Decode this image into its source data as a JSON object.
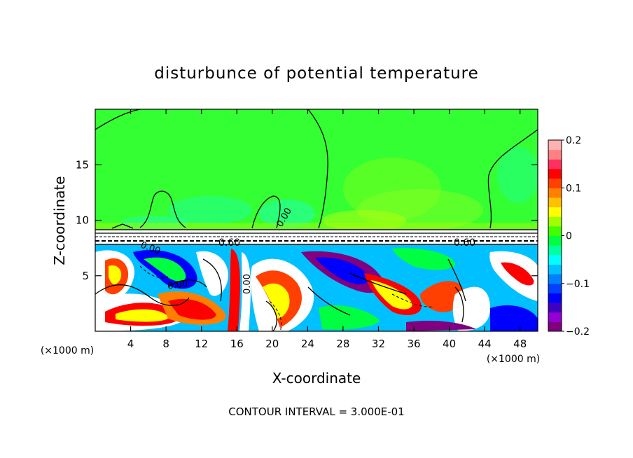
{
  "chart_data": {
    "type": "heatmap",
    "title": "disturbunce of potential temperature",
    "xlabel": "X-coordinate",
    "ylabel": "Z-coordinate",
    "x_unit_left": "(×1000 m)",
    "x_unit_right": "(×1000 m)",
    "xlim": [
      0,
      50
    ],
    "ylim": [
      0,
      20
    ],
    "xticks": [
      4,
      8,
      12,
      16,
      20,
      24,
      28,
      32,
      36,
      40,
      44,
      48
    ],
    "yticks": [
      5,
      10,
      15
    ],
    "colorbar": {
      "range": [
        -0.2,
        0.2
      ],
      "tick_values": [
        0.2,
        0.1,
        0,
        -0.1,
        -0.2
      ],
      "tick_labels": [
        "0.2",
        "0.1",
        "0",
        "−0.1",
        "−0.2"
      ],
      "colors": [
        "#800080",
        "#9400d3",
        "#4000c0",
        "#0000ff",
        "#0040ff",
        "#0080ff",
        "#00c0ff",
        "#00ffff",
        "#00ffa0",
        "#00ff40",
        "#40ff00",
        "#a0ff00",
        "#ffff00",
        "#ffc000",
        "#ff8000",
        "#ff4000",
        "#ff0000",
        "#ff3060",
        "#ff8080",
        "#ffb0b0"
      ]
    },
    "contour_labels": [
      "0.00",
      "0.00",
      "0.00",
      "0.00",
      "0.60",
      "0.60"
    ],
    "contour_interval_text": "CONTOUR INTERVAL = 3.000E-01"
  }
}
